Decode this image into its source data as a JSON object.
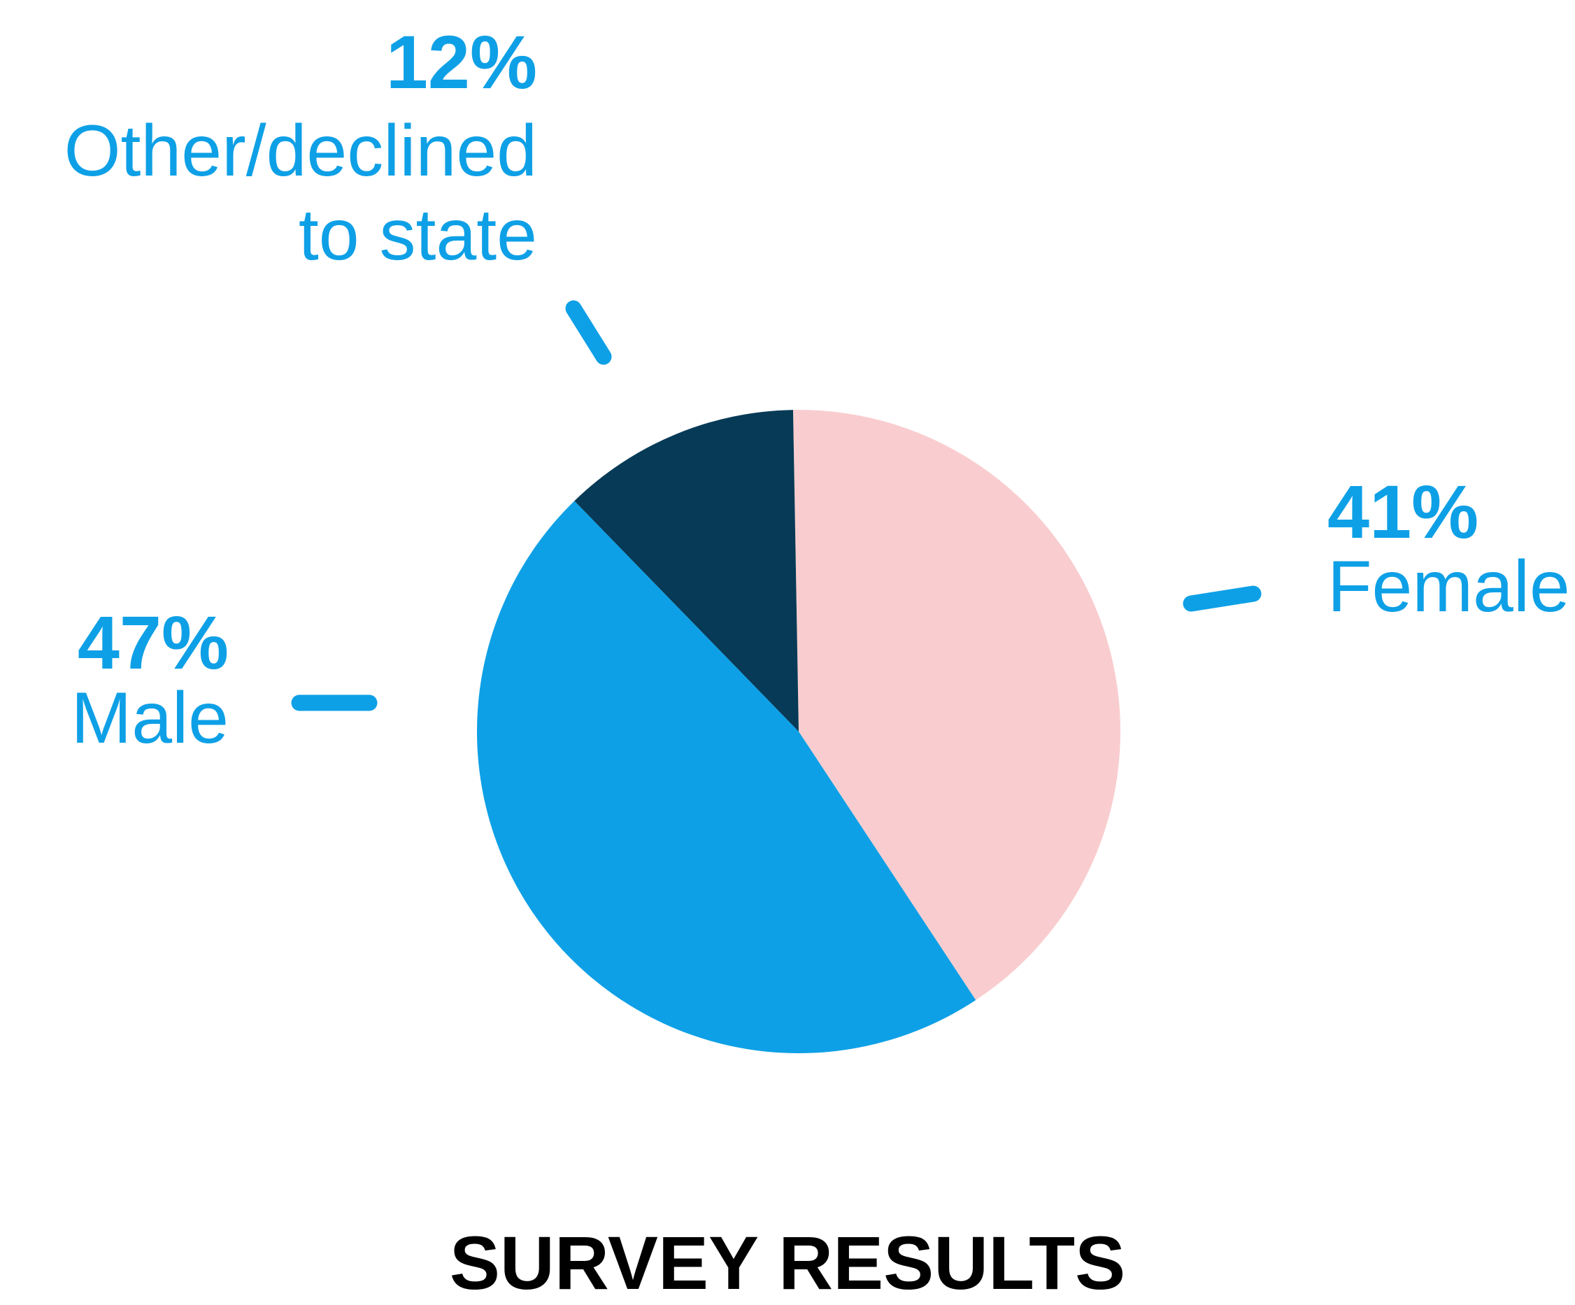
{
  "chart_data": {
    "type": "pie",
    "title": "SURVEY RESULTS",
    "categories": [
      "Female",
      "Male",
      "Other/declined to state"
    ],
    "values": [
      41,
      47,
      12
    ],
    "value_labels": [
      "41%",
      "47%",
      "12%"
    ],
    "colors": [
      "#f9cdcf",
      "#0ea0e6",
      "#063a56"
    ],
    "label_color": "#0ea0e6"
  }
}
